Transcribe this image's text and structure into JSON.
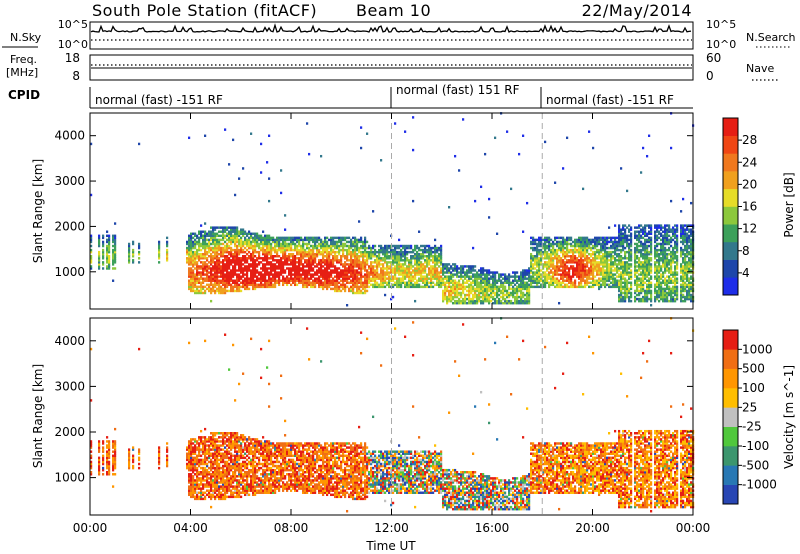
{
  "header": {
    "station_title": "South Pole Station (fitACF)",
    "beam": "Beam 10",
    "date": "22/May/2014"
  },
  "summary_panels": {
    "nsky_label": "N.Sky",
    "nsky_ticks": [
      "10^5",
      "10^0"
    ],
    "nsearch_label": "N.Search",
    "nsearch_ticks": [
      "10^5",
      "10^0"
    ],
    "freq_label_line1": "Freq.",
    "freq_label_line2": "[MHz]",
    "freq_ticks": [
      "18",
      "8"
    ],
    "nave_label": "Nave",
    "nave_ticks": [
      "60",
      "0"
    ],
    "cpid_label": "CPID",
    "modes": [
      {
        "label": "normal (fast) -151 RF",
        "start_hour": 0
      },
      {
        "label": "normal (fast) 151 RF",
        "start_hour": 12
      },
      {
        "label": "normal (fast) -151 RF",
        "start_hour": 18
      }
    ]
  },
  "chart_data": [
    {
      "type": "heatmap",
      "parameter": "Power",
      "ylabel": "Slant Range [km]",
      "xlabel": "",
      "x_ticks": [
        "00:00",
        "04:00",
        "08:00",
        "12:00",
        "16:00",
        "20:00",
        "00:00"
      ],
      "xlim_hours": [
        0,
        24
      ],
      "y_ticks": [
        "4000",
        "3000",
        "2000",
        "1000"
      ],
      "ylim_km": [
        180,
        4500
      ],
      "colorbar_label": "Power [dB]",
      "colorbar_ticks": [
        "28",
        "24",
        "20",
        "16",
        "12",
        "8",
        "4"
      ],
      "colorbar_range": [
        0,
        32
      ],
      "colors": [
        "#1e2de8",
        "#1e46aa",
        "#32788c",
        "#3ca05a",
        "#8cc83c",
        "#e6dc28",
        "#f0a01e",
        "#f0781e",
        "#f04614",
        "#e61e14"
      ],
      "mode_boundaries_hours": [
        12,
        18
      ]
    },
    {
      "type": "heatmap",
      "parameter": "Velocity",
      "ylabel": "Slant Range [km]",
      "xlabel": "Time UT",
      "x_ticks": [
        "00:00",
        "04:00",
        "08:00",
        "12:00",
        "16:00",
        "20:00",
        "00:00"
      ],
      "xlim_hours": [
        0,
        24
      ],
      "y_ticks": [
        "4000",
        "3000",
        "2000",
        "1000"
      ],
      "ylim_km": [
        180,
        4500
      ],
      "colorbar_label": "Velocity [m s^-1]",
      "colorbar_ticks": [
        "1000",
        "500",
        "100",
        "25",
        "-25",
        "-100",
        "-500",
        "-1000"
      ],
      "colors": [
        "#2846b4",
        "#2878b4",
        "#3c966e",
        "#50c83c",
        "#c0c0c0",
        "#ffbe00",
        "#ff9600",
        "#f06e14",
        "#e61e14"
      ],
      "mode_boundaries_hours": [
        12,
        18
      ]
    }
  ]
}
